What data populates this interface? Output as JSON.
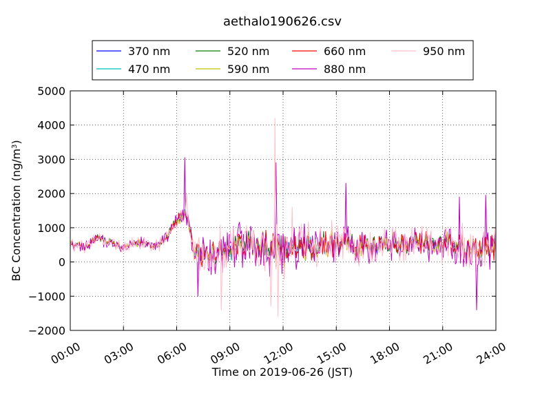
{
  "chart_data": {
    "type": "line",
    "title": "aethalo190626.csv",
    "xlabel": "Time on 2019-06-26 (JST)",
    "ylabel": "BC Concentration (ng/m³)",
    "ylabel_parts": {
      "main": "BC Concentration (ng/m",
      "sup": "3",
      "end": ")"
    },
    "x_unit": "hours since 00:00",
    "xlim": [
      0,
      24
    ],
    "ylim": [
      -2000,
      5000
    ],
    "xticks": [
      {
        "value": 0,
        "label": "00:00"
      },
      {
        "value": 3,
        "label": "03:00"
      },
      {
        "value": 6,
        "label": "06:00"
      },
      {
        "value": 9,
        "label": "09:00"
      },
      {
        "value": 12,
        "label": "12:00"
      },
      {
        "value": 15,
        "label": "15:00"
      },
      {
        "value": 18,
        "label": "18:00"
      },
      {
        "value": 21,
        "label": "21:00"
      },
      {
        "value": 24,
        "label": "24:00"
      }
    ],
    "yticks": [
      {
        "value": -2000,
        "label": "−2000"
      },
      {
        "value": -1000,
        "label": "−1000"
      },
      {
        "value": 0,
        "label": "0"
      },
      {
        "value": 1000,
        "label": "1000"
      },
      {
        "value": 2000,
        "label": "2000"
      },
      {
        "value": 3000,
        "label": "3000"
      },
      {
        "value": 4000,
        "label": "4000"
      },
      {
        "value": 5000,
        "label": "5000"
      }
    ],
    "grid": true,
    "legend_position": "top",
    "series": [
      {
        "name": "370 nm",
        "color": "#0000ff",
        "amp": 0.2,
        "seed": 11
      },
      {
        "name": "470 nm",
        "color": "#00bfbf",
        "amp": 0.25,
        "seed": 23
      },
      {
        "name": "520 nm",
        "color": "#008000",
        "amp": 0.3,
        "seed": 37
      },
      {
        "name": "590 nm",
        "color": "#bfbf00",
        "amp": 0.4,
        "seed": 41
      },
      {
        "name": "660 nm",
        "color": "#ff0000",
        "amp": 0.45,
        "seed": 53
      },
      {
        "name": "880 nm",
        "color": "#bf00bf",
        "amp": 1.0,
        "seed": 67
      },
      {
        "name": "950 nm",
        "color": "#ffc0cb",
        "amp": 1.05,
        "seed": 79
      }
    ],
    "baseline_profile": [
      [
        0.0,
        500
      ],
      [
        1.0,
        450
      ],
      [
        1.5,
        700
      ],
      [
        2.0,
        600
      ],
      [
        3.0,
        450
      ],
      [
        4.0,
        550
      ],
      [
        5.0,
        450
      ],
      [
        5.5,
        800
      ],
      [
        6.0,
        1200
      ],
      [
        6.5,
        1400
      ],
      [
        6.8,
        800
      ],
      [
        7.0,
        200
      ],
      [
        8.0,
        300
      ],
      [
        9.0,
        350
      ],
      [
        10.0,
        500
      ],
      [
        11.0,
        400
      ],
      [
        12.0,
        300
      ],
      [
        13.0,
        450
      ],
      [
        14.0,
        500
      ],
      [
        15.0,
        550
      ],
      [
        16.0,
        500
      ],
      [
        17.0,
        450
      ],
      [
        18.0,
        550
      ],
      [
        19.0,
        500
      ],
      [
        20.0,
        600
      ],
      [
        21.0,
        550
      ],
      [
        22.0,
        500
      ],
      [
        23.0,
        350
      ],
      [
        24.0,
        400
      ]
    ],
    "noise_profile": [
      [
        0.0,
        150
      ],
      [
        5.0,
        150
      ],
      [
        6.0,
        250
      ],
      [
        6.8,
        300
      ],
      [
        7.0,
        500
      ],
      [
        12.0,
        650
      ],
      [
        13.0,
        600
      ],
      [
        16.0,
        450
      ],
      [
        18.0,
        400
      ],
      [
        24.0,
        550
      ]
    ],
    "spikes": [
      {
        "series": "950 nm",
        "x": 11.55,
        "y": 4200
      },
      {
        "series": "880 nm",
        "x": 11.6,
        "y": 2900
      },
      {
        "series": "950 nm",
        "x": 11.7,
        "y": -1600
      },
      {
        "series": "880 nm",
        "x": 6.45,
        "y": 3050
      },
      {
        "series": "950 nm",
        "x": 6.55,
        "y": 2000
      },
      {
        "series": "880 nm",
        "x": 15.55,
        "y": 2300
      },
      {
        "series": "950 nm",
        "x": 8.5,
        "y": -1400
      },
      {
        "series": "950 nm",
        "x": 11.3,
        "y": -1300
      },
      {
        "series": "880 nm",
        "x": 22.9,
        "y": -1400
      },
      {
        "series": "880 nm",
        "x": 21.95,
        "y": 1900
      },
      {
        "series": "880 nm",
        "x": 23.4,
        "y": 1950
      },
      {
        "series": "880 nm",
        "x": 7.2,
        "y": -1000
      },
      {
        "series": "950 nm",
        "x": 12.5,
        "y": 1600
      }
    ]
  }
}
